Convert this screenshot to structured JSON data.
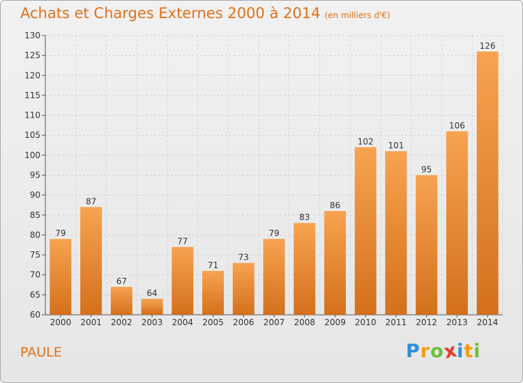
{
  "header": {
    "title": "Achats et Charges Externes 2000 à 2014",
    "unit": "(en milliers d'€)"
  },
  "footer": {
    "city": "PAULE",
    "logo_letters": [
      "P",
      "r",
      "o",
      "x",
      "i",
      "t",
      "i"
    ],
    "logo_colors": [
      "#2f8ed6",
      "#f39c12",
      "#6abf3a",
      "#e63a2e",
      "#2f8ed6",
      "#f39c12",
      "#6abf3a"
    ]
  },
  "colors": {
    "title": "#e0701a",
    "bar_light": "#f7a350",
    "bar_dark": "#d4701c"
  },
  "chart_data": {
    "type": "bar",
    "title": "Achats et Charges Externes 2000 à 2014",
    "subtitle": "(en milliers d'€)",
    "xlabel": "",
    "ylabel": "",
    "categories": [
      "2000",
      "2001",
      "2002",
      "2003",
      "2004",
      "2005",
      "2006",
      "2007",
      "2008",
      "2009",
      "2010",
      "2011",
      "2012",
      "2013",
      "2014"
    ],
    "values": [
      79,
      87,
      67,
      64,
      77,
      71,
      73,
      79,
      83,
      86,
      102,
      101,
      95,
      106,
      126
    ],
    "ylim": [
      60,
      130
    ],
    "yticks": [
      60,
      65,
      70,
      75,
      80,
      85,
      90,
      95,
      100,
      105,
      110,
      115,
      120,
      125,
      130
    ],
    "grid": true
  }
}
